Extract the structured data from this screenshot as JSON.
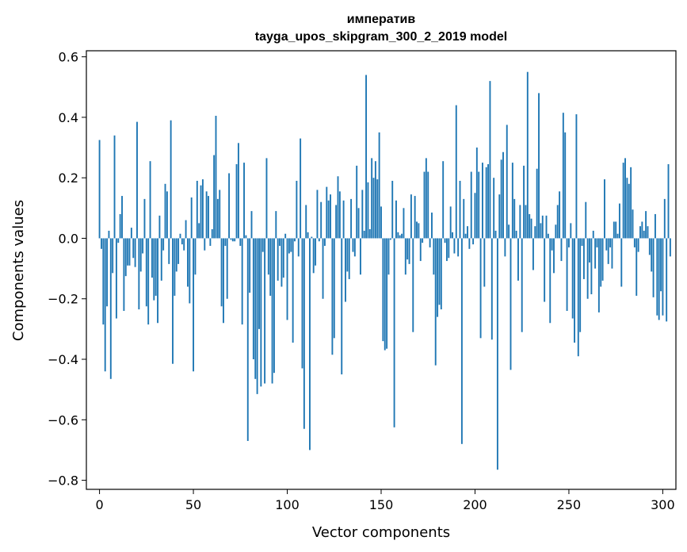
{
  "chart_data": {
    "type": "bar",
    "title": [
      "императив",
      "tayga_upos_skipgram_300_2_2019 model"
    ],
    "xlabel": "Vector components",
    "ylabel": "Components values",
    "xlim": [
      -7,
      307
    ],
    "ylim": [
      -0.83,
      0.62
    ],
    "xticks": [
      0,
      50,
      100,
      150,
      200,
      250,
      300
    ],
    "xtick_labels": [
      "0",
      "50",
      "100",
      "150",
      "200",
      "250",
      "300"
    ],
    "yticks": [
      -0.8,
      -0.6,
      -0.4,
      -0.2,
      0.0,
      0.2,
      0.4,
      0.6
    ],
    "ytick_labels": [
      "−0.8",
      "−0.6",
      "−0.4",
      "−0.2",
      "0.0",
      "0.2",
      "0.4",
      "0.6"
    ],
    "grid": false,
    "bar_color": "#1f77b4",
    "x_start": 0,
    "values": [
      0.325,
      -0.035,
      -0.285,
      -0.44,
      -0.225,
      0.025,
      -0.465,
      -0.115,
      0.34,
      -0.265,
      -0.015,
      0.08,
      0.14,
      -0.24,
      -0.125,
      -0.09,
      -0.09,
      0.035,
      -0.065,
      -0.095,
      0.385,
      -0.235,
      -0.11,
      -0.05,
      0.13,
      -0.225,
      -0.285,
      0.255,
      -0.13,
      -0.205,
      -0.19,
      -0.28,
      0.075,
      -0.14,
      -0.04,
      0.18,
      0.155,
      -0.085,
      0.39,
      -0.415,
      -0.19,
      -0.11,
      -0.085,
      0.015,
      -0.02,
      -0.04,
      0.06,
      -0.16,
      -0.215,
      0.135,
      -0.44,
      -0.12,
      0.19,
      0.05,
      0.175,
      0.195,
      -0.04,
      0.155,
      0.14,
      -0.025,
      0.03,
      0.275,
      0.405,
      0.13,
      0.16,
      -0.225,
      -0.28,
      -0.025,
      -0.2,
      0.215,
      -0.005,
      -0.01,
      -0.01,
      0.245,
      0.315,
      -0.025,
      -0.285,
      0.25,
      0.01,
      -0.67,
      -0.18,
      0.09,
      -0.4,
      -0.465,
      -0.515,
      -0.3,
      -0.49,
      -0.045,
      -0.48,
      0.265,
      -0.12,
      -0.19,
      -0.48,
      -0.445,
      0.09,
      -0.14,
      -0.025,
      -0.16,
      -0.13,
      0.015,
      -0.27,
      -0.05,
      -0.045,
      -0.345,
      -0.01,
      0.19,
      -0.06,
      0.33,
      -0.43,
      -0.63,
      0.11,
      0.02,
      -0.7,
      0.005,
      -0.115,
      -0.09,
      0.16,
      -0.01,
      0.12,
      -0.2,
      -0.025,
      0.17,
      0.125,
      0.145,
      -0.385,
      -0.33,
      0.11,
      0.205,
      0.155,
      -0.45,
      0.125,
      -0.21,
      -0.11,
      -0.135,
      0.13,
      -0.045,
      -0.06,
      0.24,
      0.1,
      -0.12,
      0.16,
      0.025,
      0.54,
      0.185,
      0.03,
      0.265,
      0.2,
      0.255,
      0.195,
      0.35,
      0.105,
      -0.34,
      -0.37,
      -0.365,
      -0.12,
      -0.005,
      0.19,
      -0.625,
      0.125,
      0.02,
      0.01,
      0.015,
      0.1,
      -0.12,
      -0.07,
      -0.085,
      0.145,
      -0.31,
      0.14,
      0.055,
      0.05,
      -0.075,
      -0.015,
      0.22,
      0.265,
      0.22,
      -0.03,
      0.085,
      -0.12,
      -0.42,
      -0.26,
      -0.22,
      -0.235,
      0.255,
      -0.015,
      -0.075,
      -0.065,
      0.105,
      0.02,
      -0.05,
      0.44,
      -0.06,
      0.19,
      -0.68,
      0.13,
      0.015,
      0.04,
      -0.035,
      0.22,
      -0.02,
      0.15,
      0.3,
      0.22,
      -0.33,
      0.25,
      -0.16,
      0.235,
      0.245,
      0.52,
      -0.335,
      0.2,
      0.025,
      -0.765,
      0.145,
      0.26,
      0.285,
      -0.06,
      0.375,
      0.045,
      -0.435,
      0.25,
      0.13,
      0.025,
      -0.14,
      0.11,
      -0.31,
      0.24,
      0.11,
      0.55,
      0.08,
      0.065,
      -0.105,
      0.04,
      0.23,
      0.48,
      0.05,
      0.075,
      -0.21,
      0.075,
      0.015,
      -0.28,
      -0.04,
      -0.115,
      0.045,
      0.11,
      0.155,
      -0.075,
      0.415,
      0.35,
      -0.24,
      -0.03,
      0.05,
      -0.265,
      -0.345,
      0.41,
      -0.39,
      -0.31,
      -0.025,
      -0.135,
      0.12,
      -0.2,
      -0.08,
      -0.185,
      0.025,
      -0.1,
      -0.03,
      -0.245,
      -0.16,
      -0.14,
      0.195,
      -0.04,
      -0.085,
      -0.03,
      -0.1,
      0.055,
      0.055,
      0.015,
      0.115,
      -0.16,
      0.25,
      0.265,
      0.2,
      0.18,
      0.235,
      0.095,
      -0.03,
      -0.19,
      -0.045,
      0.04,
      0.055,
      0.025,
      0.09,
      0.04,
      -0.055,
      -0.11,
      -0.195,
      0.08,
      -0.255,
      -0.27,
      -0.175,
      -0.255,
      0.13,
      -0.275,
      0.245,
      -0.06
    ]
  }
}
